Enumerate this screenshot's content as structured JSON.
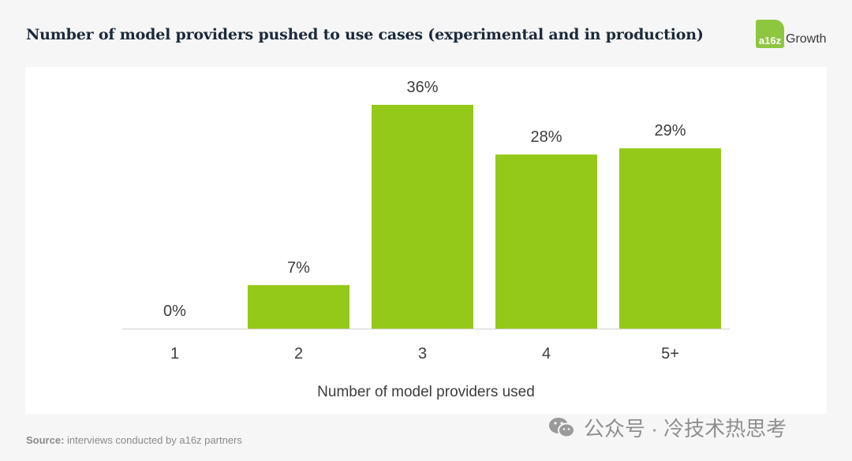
{
  "header": {
    "title": "Number of model providers pushed to use cases (experimental and in production)",
    "logo_badge": "a16z",
    "logo_text": "Growth"
  },
  "footer": {
    "source_label": "Source:",
    "source_text": " interviews conducted by a16z partners",
    "watermark_text": "公众号 · 冷技术热思考",
    "watermark_icon": "wechat-icon"
  },
  "colors": {
    "bar": "#95c919",
    "axis": "#d0d0d0",
    "text": "#3d3d3d",
    "logo": "#8dc63f"
  },
  "chart_data": {
    "type": "bar",
    "categories": [
      "1",
      "2",
      "3",
      "4",
      "5+"
    ],
    "values": [
      0,
      7,
      36,
      28,
      29
    ],
    "data_labels": [
      "0%",
      "7%",
      "36%",
      "28%",
      "29%"
    ],
    "title": "Number of model providers pushed to use cases (experimental and in production)",
    "xlabel": "Number of model providers used",
    "ylabel": "",
    "ylim": [
      0,
      36
    ],
    "grid": false,
    "legend": "none"
  }
}
